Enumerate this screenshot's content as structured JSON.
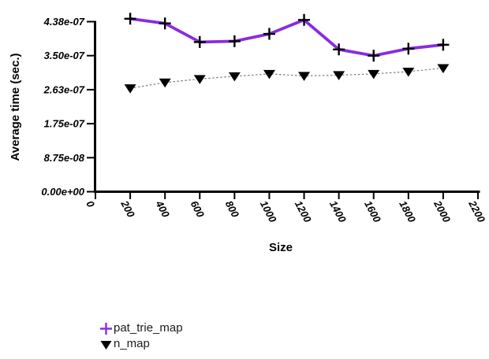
{
  "page": {
    "background": "#ffffff"
  },
  "chart_data": {
    "type": "line",
    "title": "",
    "xlabel": "Size",
    "ylabel": "Average time (sec.)",
    "grid": false,
    "legend_position": "bottom-left-below-plot",
    "x_axis": {
      "min": 0,
      "max": 2200,
      "tick_values": [
        0,
        200,
        400,
        600,
        800,
        1000,
        1200,
        1400,
        1600,
        1800,
        2000,
        2200
      ],
      "tick_labels": [
        "0",
        "200",
        "400",
        "600",
        "800",
        "1000",
        "1200",
        "1400",
        "1600",
        "1800",
        "2000",
        "2200"
      ],
      "tick_label_rotation_deg": 62
    },
    "y_axis": {
      "min": 0,
      "max": 4.375e-07,
      "tick_values": [
        0,
        8.75e-08,
        1.75e-07,
        2.625e-07,
        3.5e-07,
        4.375e-07
      ],
      "tick_labels": [
        "0.00e+00",
        "8.75e-08",
        "1.75e-07",
        "2.63e-07",
        "3.50e-07",
        "4.38e-07"
      ]
    },
    "x": [
      200,
      400,
      600,
      800,
      1000,
      1200,
      1400,
      1600,
      1800,
      2000
    ],
    "series": [
      {
        "name": "pat_trie_map",
        "marker": "plus",
        "marker_color": "#000000",
        "line_color": "#8a2be2",
        "line_style": "solid",
        "line_width": 3.8,
        "values": [
          4.45e-07,
          4.33e-07,
          3.85e-07,
          3.87e-07,
          4.06e-07,
          4.42e-07,
          3.66e-07,
          3.5e-07,
          3.68e-07,
          3.78e-07
        ]
      },
      {
        "name": "n_map",
        "marker": "triangle-down",
        "marker_color": "#000000",
        "line_color": "#7a7a7a",
        "line_style": "dotted",
        "line_width": 1.2,
        "values": [
          2.66e-07,
          2.81e-07,
          2.9e-07,
          2.97e-07,
          3.03e-07,
          2.98e-07,
          3e-07,
          3.03e-07,
          3.09e-07,
          3.18e-07
        ]
      }
    ]
  }
}
